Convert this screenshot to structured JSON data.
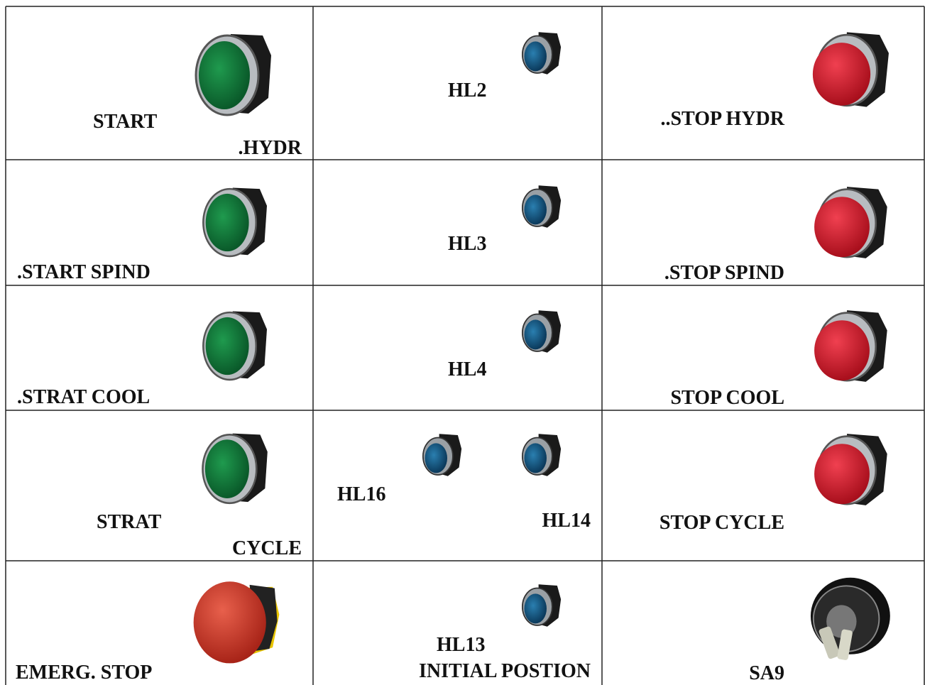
{
  "table": {
    "rows": [
      [
        [
          "START",
          ".HYDR"
        ],
        [
          "HL2"
        ],
        [
          "..STOP HYDR"
        ]
      ],
      [
        [
          ".START SPIND"
        ],
        [
          "HL3"
        ],
        [
          ".STOP SPIND"
        ]
      ],
      [
        [
          ".STRAT COOL"
        ],
        [
          "HL4"
        ],
        [
          "STOP COOL"
        ]
      ],
      [
        [
          "STRAT",
          "CYCLE"
        ],
        [
          "HL16",
          "HL14"
        ],
        [
          "STOP CYCLE"
        ]
      ],
      [
        [
          "EMERG. STOP"
        ],
        [
          "HL13",
          "INITIAL POSTION"
        ],
        [
          "SA9"
        ]
      ]
    ]
  }
}
